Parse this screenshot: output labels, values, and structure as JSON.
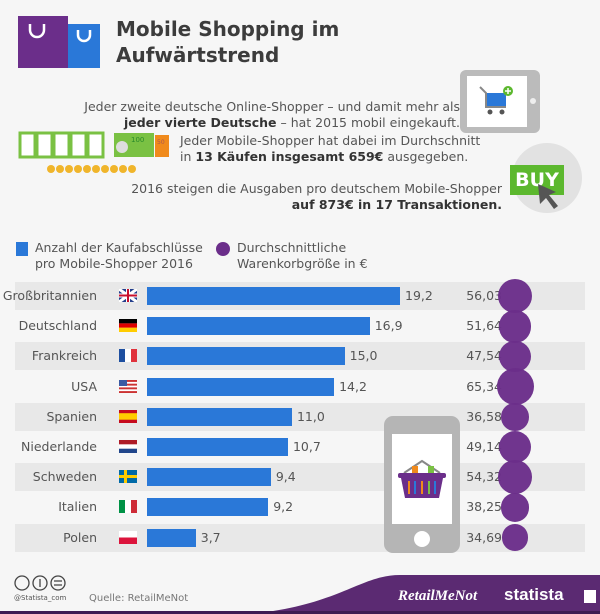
{
  "header": {
    "title_line1": "Mobile Shopping im",
    "title_line2": "Aufwärtstrend"
  },
  "facts": {
    "f1_line1": "Jeder zweite deutsche Online-Shopper – und damit mehr als",
    "f1_bold": "jeder vierte Deutsche",
    "f1_rest": " – hat 2015 mobil eingekauft.",
    "f2_line1": "Jeder Mobile-Shopper hat dabei im Durchschnitt",
    "f2_pre": "in ",
    "f2_bold": "13 Käufen insgesamt 659€",
    "f2_rest": " ausgegeben.",
    "f3_line1": "2016 steigen die Ausgaben pro deutschem Mobile-Shopper",
    "f3_bold": "auf 873€ in 17 Transaktionen.",
    "buy_label": "BUY",
    "banknote_label": "100",
    "banknote_small_label": "50"
  },
  "chart_data": {
    "type": "bar",
    "categories": [
      "Großbritannien",
      "Deutschland",
      "Frankreich",
      "USA",
      "Spanien",
      "Niederlande",
      "Schweden",
      "Italien",
      "Polen"
    ],
    "series": [
      {
        "name": "Anzahl der Kaufabschlüsse pro Mobile-Shopper 2016",
        "values": [
          19.2,
          16.9,
          15.0,
          14.2,
          11.0,
          10.7,
          9.4,
          9.2,
          3.7
        ],
        "labels": [
          "19,2",
          "16,9",
          "15,0",
          "14,2",
          "11,0",
          "10,7",
          "9,4",
          "9,2",
          "3,7"
        ],
        "color": "#2a78d8"
      },
      {
        "name": "Durchschnittliche Warenkorbgröße in €",
        "values": [
          56.03,
          51.64,
          47.54,
          65.34,
          36.58,
          49.14,
          54.32,
          38.25,
          34.69
        ],
        "labels": [
          "56,03",
          "51,64",
          "47,54",
          "65,34",
          "36,58",
          "49,14",
          "54,32",
          "38,25",
          "34,69"
        ],
        "color": "#6b2e8a"
      }
    ],
    "legend": {
      "item1_line1": "Anzahl der Kaufabschlüsse",
      "item1_line2": "pro Mobile-Shopper 2016",
      "item2_line1": "Durchschnittliche",
      "item2_line2": "Warenkorbgröße in €",
      "placement": "top-left"
    },
    "flags": [
      "uk",
      "de",
      "fr",
      "us",
      "es",
      "nl",
      "se",
      "it",
      "pl"
    ]
  },
  "footer": {
    "handle": "@Statista_com",
    "source": "Quelle: RetailMeNot",
    "brand1": "RetailMeNot",
    "brand2": "statista"
  }
}
